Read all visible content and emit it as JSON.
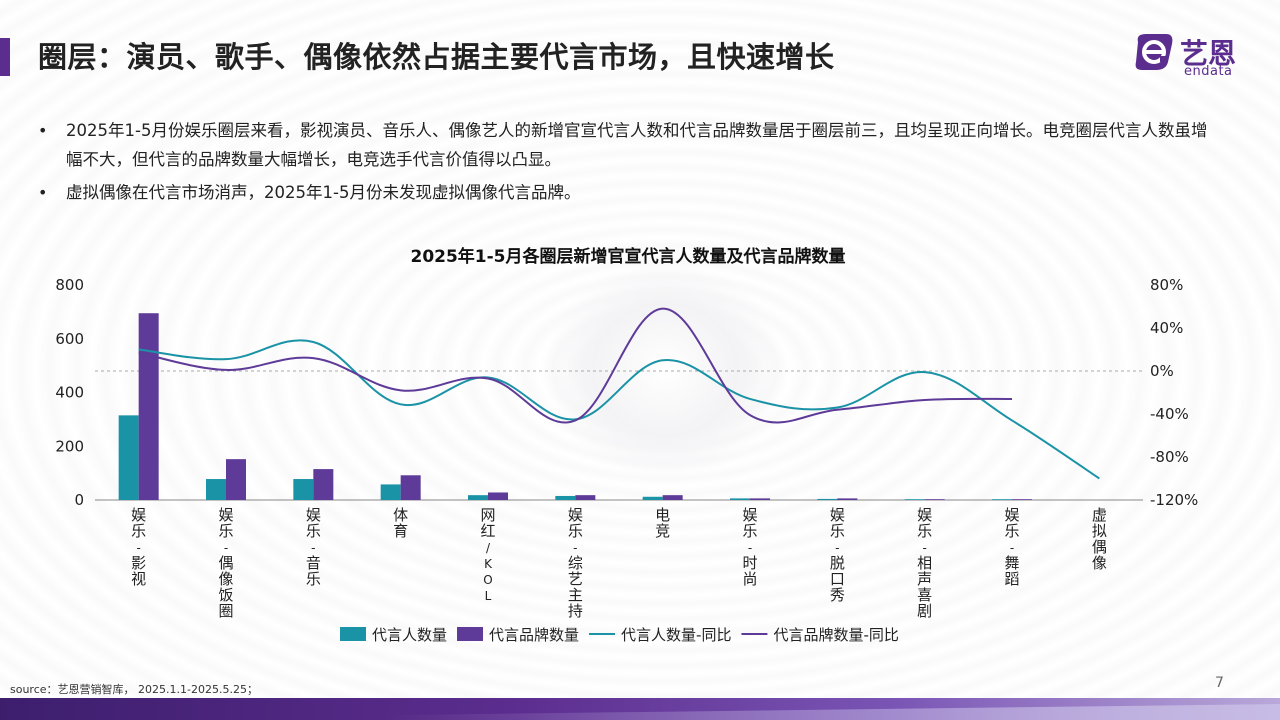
{
  "page": {
    "title": "圈层：演员、歌手、偶像依然占据主要代言市场，且快速增长",
    "bullets": [
      "2025年1-5月份娱乐圈层来看，影视演员、音乐人、偶像艺人的新增官宣代言人数和代言品牌数量居于圈层前三，且均呈现正向增长。电竞圈层代言人数虽增幅不大，但代言的品牌数量大幅增长，电竞选手代言价值得以凸显。",
      "虚拟偶像在代言市场消声，2025年1-5月份未发现虚拟偶像代言品牌。"
    ],
    "bullet_symbol": "•",
    "source": "source：艺恩营销智库， 2025.1.1-2025.5.25；",
    "page_number": "7"
  },
  "logo": {
    "cn": "艺恩",
    "en": "endata",
    "color": "#5b2d8e"
  },
  "colors": {
    "teal": "#1b93a6",
    "purple": "#5e3b98",
    "accent": "#5b2d8e"
  },
  "chart_data": {
    "type": "bar",
    "title": "2025年1-5月各圈层新增官宣代言人数量及代言品牌数量",
    "categories": [
      "娱乐-影视",
      "娱乐-偶像饭圈",
      "娱乐-音乐",
      "体育",
      "网红/KOL",
      "娱乐-综艺主持",
      "电竞",
      "娱乐-时尚",
      "娱乐-脱口秀",
      "娱乐-相声喜剧",
      "娱乐-舞蹈",
      "虚拟偶像"
    ],
    "y_left": {
      "ylim": [
        0,
        800
      ],
      "ticks": [
        "0",
        "200",
        "400",
        "600",
        "800"
      ]
    },
    "y_right": {
      "ylim": [
        -120,
        80
      ],
      "ticks": [
        "-120%",
        "-80%",
        "-40%",
        "0%",
        "40%",
        "80%"
      ]
    },
    "series": [
      {
        "name": "代言人数量",
        "type": "bar",
        "axis": "left",
        "color": "#1b93a6",
        "values": [
          315,
          78,
          78,
          58,
          18,
          15,
          12,
          6,
          4,
          3,
          3,
          0
        ]
      },
      {
        "name": "代言品牌数量",
        "type": "bar",
        "axis": "left",
        "color": "#5e3b98",
        "values": [
          695,
          152,
          115,
          92,
          28,
          18,
          18,
          6,
          6,
          3,
          3,
          0
        ]
      },
      {
        "name": "代言人数量-同比",
        "type": "line",
        "axis": "right",
        "color": "#1b93a6",
        "values": [
          20,
          11,
          27,
          -31,
          -6,
          -45,
          10,
          -26,
          -34,
          -1,
          -46,
          -100
        ]
      },
      {
        "name": "代言品牌数量-同比",
        "type": "line",
        "axis": "right",
        "color": "#5e3b98",
        "values": [
          17,
          1,
          12,
          -18,
          -7,
          -46,
          58,
          -41,
          -36,
          -27,
          -26,
          null
        ]
      }
    ],
    "legend_position": "bottom",
    "zero_reference_line": "dashed"
  }
}
